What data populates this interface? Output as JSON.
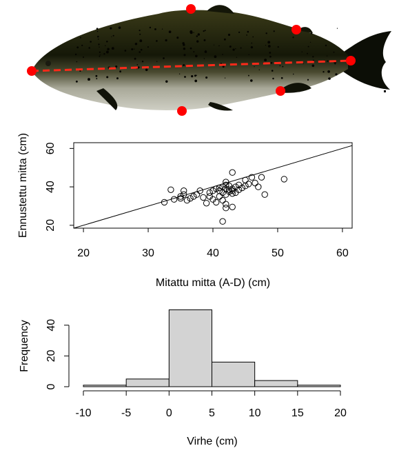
{
  "photo": {
    "description_icon": "fish-icon",
    "marker_color": "#ff0000",
    "line_color": "#ff2a1a",
    "marker_points": [
      {
        "name": "nose"
      },
      {
        "name": "dorsal-top"
      },
      {
        "name": "back-rear"
      },
      {
        "name": "tail-end"
      },
      {
        "name": "belly-rear"
      },
      {
        "name": "belly-bottom"
      }
    ]
  },
  "chart_data": [
    {
      "type": "scatter",
      "xlabel": "Mitattu mitta (A-D) (cm)",
      "ylabel": "Ennustettu mitta (cm)",
      "xlim": [
        18.5,
        61.5
      ],
      "ylim": [
        18.5,
        63
      ],
      "xticks": [
        20,
        30,
        40,
        50,
        60
      ],
      "yticks": [
        20,
        40,
        60
      ],
      "reference_line": {
        "intercept": 0,
        "slope": 1
      },
      "points": [
        [
          32.5,
          32.0
        ],
        [
          33.5,
          38.5
        ],
        [
          34.0,
          33.5
        ],
        [
          35.0,
          34.0
        ],
        [
          35.0,
          35.0
        ],
        [
          35.5,
          36.0
        ],
        [
          35.5,
          38.0
        ],
        [
          36.0,
          33.0
        ],
        [
          36.5,
          34.0
        ],
        [
          37.0,
          35.0
        ],
        [
          37.5,
          36.0
        ],
        [
          38.0,
          38.0
        ],
        [
          38.5,
          34.5
        ],
        [
          39.0,
          31.5
        ],
        [
          39.5,
          37.0
        ],
        [
          39.5,
          35.0
        ],
        [
          40.0,
          38.0
        ],
        [
          40.0,
          33.5
        ],
        [
          40.5,
          32.0
        ],
        [
          40.5,
          39.0
        ],
        [
          41.0,
          35.0
        ],
        [
          41.0,
          38.0
        ],
        [
          41.0,
          39.5
        ],
        [
          41.5,
          37.0
        ],
        [
          41.5,
          33.0
        ],
        [
          41.5,
          40.0
        ],
        [
          41.5,
          22.0
        ],
        [
          42.0,
          36.0
        ],
        [
          42.0,
          39.0
        ],
        [
          42.0,
          41.0
        ],
        [
          42.0,
          42.5
        ],
        [
          42.0,
          31.0
        ],
        [
          42.0,
          29.0
        ],
        [
          42.5,
          37.5
        ],
        [
          42.5,
          38.5
        ],
        [
          42.5,
          40.5
        ],
        [
          43.0,
          36.5
        ],
        [
          43.0,
          38.0
        ],
        [
          43.0,
          39.0
        ],
        [
          43.0,
          47.5
        ],
        [
          43.0,
          29.5
        ],
        [
          43.5,
          40.0
        ],
        [
          43.5,
          37.0
        ],
        [
          44.0,
          38.5
        ],
        [
          44.0,
          41.0
        ],
        [
          44.5,
          39.5
        ],
        [
          45.0,
          40.5
        ],
        [
          45.0,
          43.5
        ],
        [
          45.5,
          41.5
        ],
        [
          46.0,
          45.0
        ],
        [
          46.5,
          42.0
        ],
        [
          47.0,
          40.0
        ],
        [
          47.5,
          45.0
        ],
        [
          48.0,
          36.0
        ],
        [
          51.0,
          44.0
        ]
      ]
    },
    {
      "type": "bar",
      "xlabel": "Virhe (cm)",
      "ylabel": "Frequency",
      "xlim": [
        -10,
        20
      ],
      "ylim": [
        0,
        52
      ],
      "xticks": [
        -10,
        -5,
        0,
        5,
        10,
        15,
        20
      ],
      "yticks": [
        0,
        20,
        40
      ],
      "bins": [
        {
          "from": -10,
          "to": -5,
          "count": 1
        },
        {
          "from": -5,
          "to": 0,
          "count": 5
        },
        {
          "from": 0,
          "to": 5,
          "count": 50
        },
        {
          "from": 5,
          "to": 10,
          "count": 16
        },
        {
          "from": 10,
          "to": 15,
          "count": 4
        },
        {
          "from": 15,
          "to": 20,
          "count": 1
        }
      ],
      "bar_color": "#d3d3d3"
    }
  ]
}
